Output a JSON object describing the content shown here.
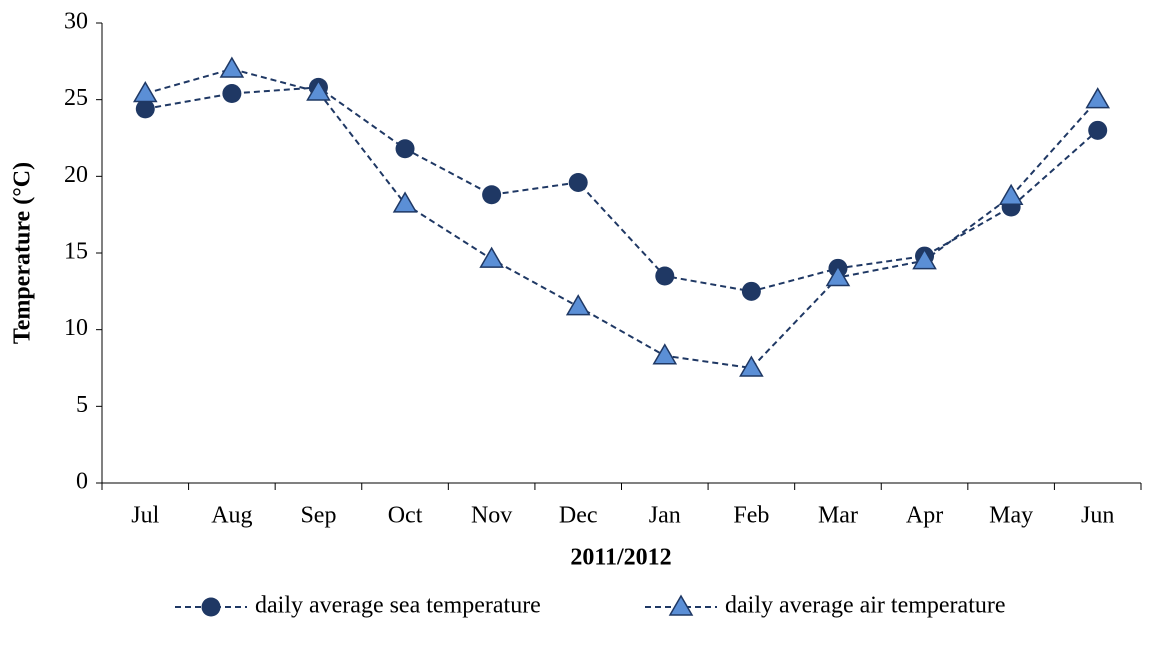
{
  "chart_data": {
    "type": "line",
    "x_label": "2011/2012",
    "y_label": "Temperature (°C)",
    "categories": [
      "Jul",
      "Aug",
      "Sep",
      "Oct",
      "Nov",
      "Dec",
      "Jan",
      "Feb",
      "Mar",
      "Apr",
      "May",
      "Jun"
    ],
    "series": [
      {
        "name": "daily average sea temperature",
        "color": "#1f3864",
        "marker": "circle",
        "values": [
          24.4,
          25.4,
          25.8,
          21.8,
          18.8,
          19.6,
          13.5,
          12.5,
          14.0,
          14.8,
          18.0,
          23.0
        ]
      },
      {
        "name": "daily average air temperature",
        "color": "#5b8fd6",
        "marker": "triangle",
        "values": [
          25.4,
          27.0,
          25.5,
          18.2,
          14.6,
          11.5,
          8.3,
          7.5,
          13.4,
          14.5,
          18.7,
          25.0
        ]
      }
    ],
    "ylim": [
      0,
      30
    ],
    "yticks": [
      0,
      5,
      10,
      15,
      20,
      25,
      30
    ],
    "grid": false,
    "legend": "bottom"
  }
}
